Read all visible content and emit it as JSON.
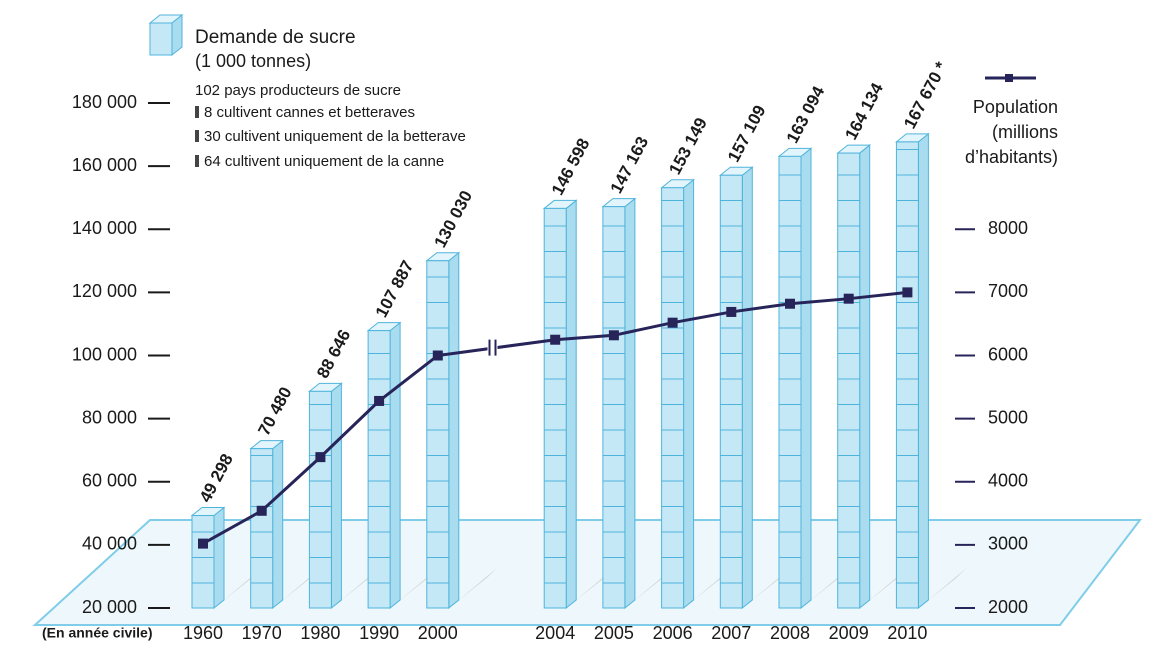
{
  "chart_data": {
    "type": "bar",
    "series_name": "Demande de sucre",
    "series_unit": "(1 000 tonnes)",
    "notes": [
      "102 pays producteurs de sucre",
      "8 cultivent cannes et betteraves",
      "30 cultivent uniquement de la betterave",
      "64 cultivent uniquement de la canne"
    ],
    "xlabel": "(En année civile)",
    "categories": [
      "1960",
      "1970",
      "1980",
      "1990",
      "2000",
      "2004",
      "2005",
      "2006",
      "2007",
      "2008",
      "2009",
      "2010"
    ],
    "values": [
      49298,
      70480,
      88646,
      107887,
      130030,
      146598,
      147163,
      153149,
      157109,
      163094,
      164134,
      167670
    ],
    "value_labels": [
      "49 298",
      "70 480",
      "88 646",
      "107 887",
      "130 030",
      "146 598",
      "147 163",
      "153 149",
      "157 109",
      "163 094",
      "164 134",
      "167 670 *"
    ],
    "color": "#c4e8f6",
    "ylim": [
      20000,
      180000
    ],
    "yticks": [
      {
        "value": 20000,
        "label": "20 000"
      },
      {
        "value": 40000,
        "label": "40 000"
      },
      {
        "value": 60000,
        "label": "60 000"
      },
      {
        "value": 80000,
        "label": "80 000"
      },
      {
        "value": 100000,
        "label": "100 000"
      },
      {
        "value": 120000,
        "label": "120 000"
      },
      {
        "value": 140000,
        "label": "140 000"
      },
      {
        "value": 160000,
        "label": "160 000"
      },
      {
        "value": 180000,
        "label": "180 000"
      }
    ],
    "line_series": {
      "name": "Population",
      "unit_lines": [
        "(millions",
        "d’habitants)"
      ],
      "color": "#27245a",
      "axis": "y2",
      "values": [
        3020,
        3540,
        4390,
        5280,
        6000,
        6250,
        6320,
        6520,
        6690,
        6820,
        6900,
        7000
      ]
    },
    "y2lim": [
      2000,
      10000
    ],
    "y2ticks": [
      2000,
      3000,
      4000,
      5000,
      6000,
      7000,
      8000
    ]
  }
}
